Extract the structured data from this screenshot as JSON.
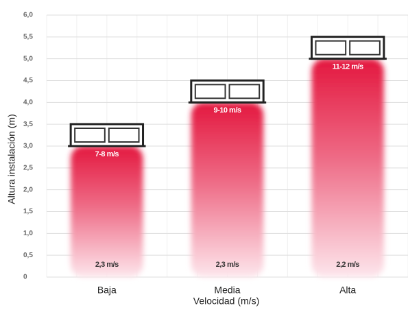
{
  "chart_data": {
    "type": "bar",
    "x_label": "Velocidad (m/s)",
    "y_label": "Altura instalación (m)",
    "categories": [
      "Baja",
      "Media",
      "Alta"
    ],
    "values": [
      3.0,
      4.0,
      5.0
    ],
    "color": "#e3183f",
    "top_labels": [
      "7-8 m/s",
      "9-10 m/s",
      "11-12 m/s"
    ],
    "bottom_labels": [
      "2,3 m/s",
      "2,3 m/s",
      "2,2 m/s"
    ],
    "ylim": [
      0,
      6
    ],
    "yticks": [
      0,
      {
        "value": 0.5,
        "label": "0,5"
      },
      {
        "value": 1,
        "label": "1,0"
      },
      {
        "value": 1.5,
        "label": "1,5"
      },
      {
        "value": 2,
        "label": "2,0"
      },
      {
        "value": 2.5,
        "label": "2,5"
      },
      {
        "value": 3,
        "label": "3,0"
      },
      {
        "value": 3.5,
        "label": "3,5"
      },
      {
        "value": 4,
        "label": "4,0"
      },
      {
        "value": 4.5,
        "label": "4,5"
      },
      {
        "value": 5,
        "label": "5,0"
      },
      {
        "value": 5.5,
        "label": "5,5"
      },
      {
        "value": 6,
        "label": "6,0"
      }
    ],
    "grid": true
  }
}
